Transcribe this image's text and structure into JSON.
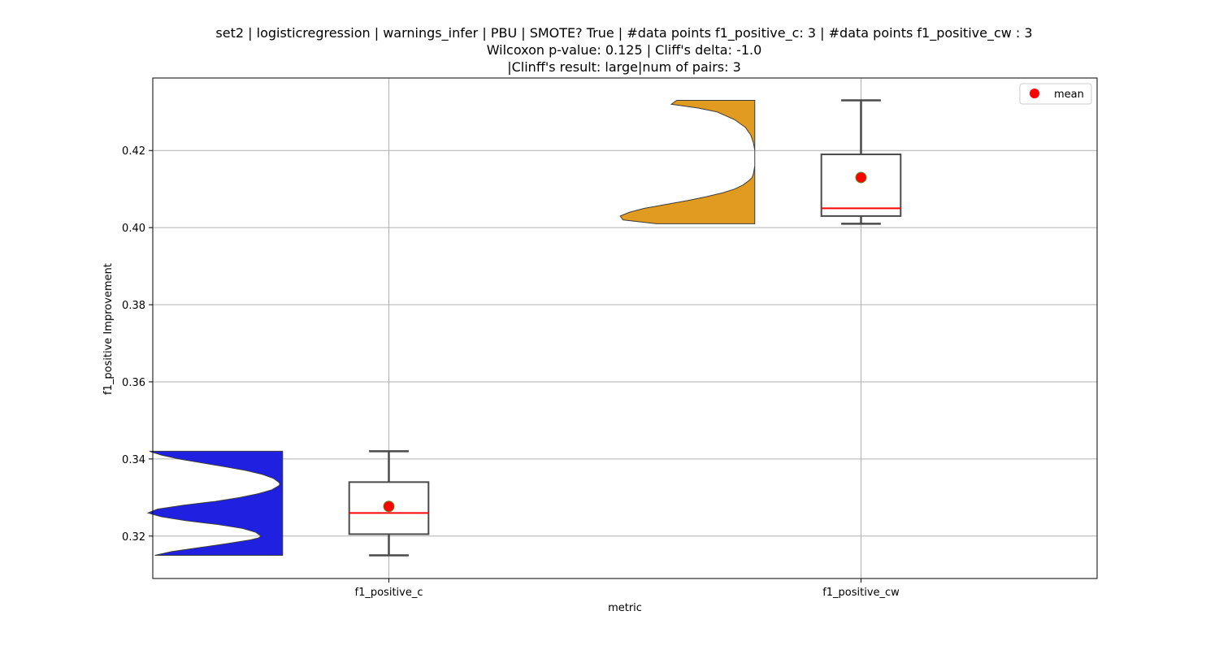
{
  "chart_data": {
    "type": "violin-box",
    "title_lines": [
      "set2 | logisticregression | warnings_infer | PBU | SMOTE? True | #data points f1_positive_c: 3 | #data points f1_positive_cw : 3",
      "Wilcoxon p-value: 0.125 | Cliff's delta: -1.0",
      "|Clinff's result: large|num of pairs: 3"
    ],
    "xlabel": "metric",
    "ylabel": "f1_positive Improvement",
    "ylim": [
      0.309,
      0.4388
    ],
    "yticks": [
      0.32,
      0.34,
      0.36,
      0.38,
      0.4,
      0.42
    ],
    "ytick_labels": [
      "0.32",
      "0.34",
      "0.36",
      "0.38",
      "0.40",
      "0.42"
    ],
    "grid": true,
    "legend": {
      "position": "top-right",
      "entries": [
        {
          "label": "mean",
          "color": "#ff0000"
        }
      ]
    },
    "categories": [
      "f1_positive_c",
      "f1_positive_cw"
    ],
    "series": [
      {
        "category": "f1_positive_c",
        "violin_color": "#2020e0",
        "values": [
          0.315,
          0.326,
          0.342
        ],
        "box": {
          "min": 0.315,
          "q1": 0.3205,
          "median": 0.326,
          "q3": 0.334,
          "max": 0.342
        },
        "mean": 0.3277,
        "violin_profile": [
          [
            0.315,
            0.95
          ],
          [
            0.316,
            0.82
          ],
          [
            0.317,
            0.62
          ],
          [
            0.318,
            0.42
          ],
          [
            0.319,
            0.24
          ],
          [
            0.3195,
            0.18
          ],
          [
            0.32,
            0.16
          ],
          [
            0.321,
            0.2
          ],
          [
            0.322,
            0.3
          ],
          [
            0.323,
            0.48
          ],
          [
            0.324,
            0.72
          ],
          [
            0.325,
            0.9
          ],
          [
            0.326,
            1.0
          ],
          [
            0.327,
            0.93
          ],
          [
            0.328,
            0.74
          ],
          [
            0.329,
            0.5
          ],
          [
            0.33,
            0.32
          ],
          [
            0.331,
            0.18
          ],
          [
            0.332,
            0.08
          ],
          [
            0.333,
            0.03
          ],
          [
            0.3335,
            0.02
          ],
          [
            0.334,
            0.03
          ],
          [
            0.335,
            0.07
          ],
          [
            0.336,
            0.15
          ],
          [
            0.337,
            0.27
          ],
          [
            0.338,
            0.43
          ],
          [
            0.339,
            0.6
          ],
          [
            0.34,
            0.77
          ],
          [
            0.341,
            0.9
          ],
          [
            0.342,
            0.99
          ]
        ]
      },
      {
        "category": "f1_positive_cw",
        "violin_color": "#e09b20",
        "values": [
          0.401,
          0.405,
          0.433
        ],
        "box": {
          "min": 0.401,
          "q1": 0.403,
          "median": 0.405,
          "q3": 0.419,
          "max": 0.433
        },
        "mean": 0.413,
        "violin_profile": [
          [
            0.401,
            0.73
          ],
          [
            0.402,
            0.98
          ],
          [
            0.403,
            1.0
          ],
          [
            0.404,
            0.93
          ],
          [
            0.405,
            0.82
          ],
          [
            0.406,
            0.66
          ],
          [
            0.407,
            0.5
          ],
          [
            0.408,
            0.36
          ],
          [
            0.409,
            0.24
          ],
          [
            0.41,
            0.15
          ],
          [
            0.411,
            0.09
          ],
          [
            0.412,
            0.05
          ],
          [
            0.413,
            0.02
          ],
          [
            0.414,
            0.01
          ],
          [
            0.416,
            0.0
          ],
          [
            0.418,
            0.0
          ],
          [
            0.42,
            0.0
          ],
          [
            0.422,
            0.01
          ],
          [
            0.424,
            0.03
          ],
          [
            0.426,
            0.07
          ],
          [
            0.428,
            0.15
          ],
          [
            0.43,
            0.28
          ],
          [
            0.431,
            0.42
          ],
          [
            0.432,
            0.62
          ],
          [
            0.433,
            0.58
          ]
        ]
      }
    ],
    "colors": {
      "median": "#ff0000",
      "mean_marker": "#ff0000",
      "box_edge": "#4a4a4a",
      "grid": "#b0b0b0"
    }
  }
}
